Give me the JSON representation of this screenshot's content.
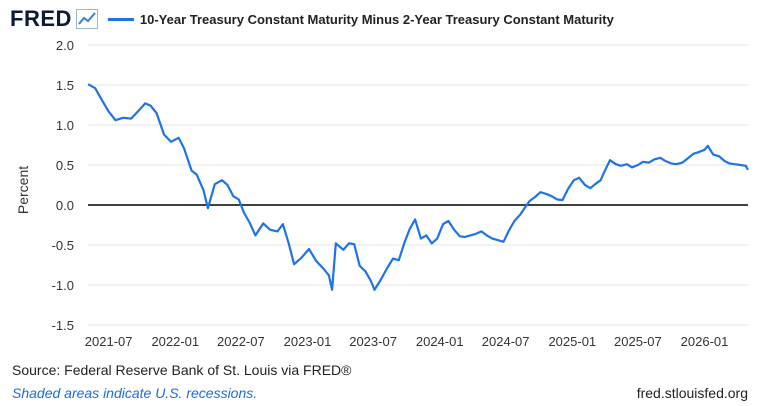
{
  "brand": {
    "logo_text": "FRED",
    "icon": "line-chart-icon"
  },
  "colors": {
    "series": "#1e73e6",
    "grid": "#e3e3e3",
    "zero_line": "#000000",
    "axis_text": "#333333"
  },
  "chart_data": {
    "type": "line",
    "title": "",
    "ylabel": "Percent",
    "xlabel": "",
    "ylim": [
      -1.5,
      2.0
    ],
    "yticks": [
      2.0,
      1.5,
      1.0,
      0.5,
      0.0,
      -0.5,
      -1.0,
      -1.5
    ],
    "ytick_labels": [
      "2.0",
      "1.5",
      "1.0",
      "0.5",
      "0.0",
      "-0.5",
      "-1.0",
      "-1.5"
    ],
    "xlim": [
      "2021-05-05",
      "2026-05-01"
    ],
    "xticks": [
      "2021-07-01",
      "2022-01-01",
      "2022-07-01",
      "2023-01-01",
      "2023-07-01",
      "2024-01-01",
      "2024-07-01",
      "2025-01-01",
      "2025-07-01",
      "2026-01-01"
    ],
    "xtick_labels": [
      "2021-07",
      "2022-01",
      "2022-07",
      "2023-01",
      "2023-07",
      "2024-01",
      "2024-07",
      "2025-01",
      "2025-07",
      "2026-01"
    ],
    "grid": "horizontal",
    "reference_line": 0,
    "legend_position": "top",
    "series": [
      {
        "name": "10-Year Treasury Constant Maturity Minus 2-Year Treasury Constant Maturity",
        "points": [
          [
            "2021-05-05",
            1.51
          ],
          [
            "2021-05-25",
            1.46
          ],
          [
            "2021-06-15",
            1.29
          ],
          [
            "2021-07-01",
            1.17
          ],
          [
            "2021-07-20",
            1.06
          ],
          [
            "2021-08-10",
            1.09
          ],
          [
            "2021-09-01",
            1.08
          ],
          [
            "2021-09-20",
            1.17
          ],
          [
            "2021-10-10",
            1.27
          ],
          [
            "2021-10-25",
            1.24
          ],
          [
            "2021-11-10",
            1.15
          ],
          [
            "2021-12-01",
            0.88
          ],
          [
            "2021-12-20",
            0.79
          ],
          [
            "2022-01-10",
            0.84
          ],
          [
            "2022-01-25",
            0.71
          ],
          [
            "2022-02-15",
            0.43
          ],
          [
            "2022-03-01",
            0.38
          ],
          [
            "2022-03-20",
            0.18
          ],
          [
            "2022-04-01",
            -0.04
          ],
          [
            "2022-04-20",
            0.26
          ],
          [
            "2022-05-10",
            0.31
          ],
          [
            "2022-05-25",
            0.25
          ],
          [
            "2022-06-10",
            0.11
          ],
          [
            "2022-06-25",
            0.07
          ],
          [
            "2022-07-10",
            -0.1
          ],
          [
            "2022-07-25",
            -0.22
          ],
          [
            "2022-08-10",
            -0.38
          ],
          [
            "2022-09-01",
            -0.23
          ],
          [
            "2022-09-20",
            -0.31
          ],
          [
            "2022-10-10",
            -0.33
          ],
          [
            "2022-10-25",
            -0.24
          ],
          [
            "2022-11-10",
            -0.48
          ],
          [
            "2022-11-25",
            -0.74
          ],
          [
            "2022-12-15",
            -0.66
          ],
          [
            "2023-01-05",
            -0.55
          ],
          [
            "2023-01-25",
            -0.7
          ],
          [
            "2023-02-15",
            -0.8
          ],
          [
            "2023-03-01",
            -0.88
          ],
          [
            "2023-03-10",
            -1.06
          ],
          [
            "2023-03-20",
            -0.48
          ],
          [
            "2023-04-10",
            -0.56
          ],
          [
            "2023-04-25",
            -0.48
          ],
          [
            "2023-05-10",
            -0.49
          ],
          [
            "2023-05-25",
            -0.76
          ],
          [
            "2023-06-10",
            -0.83
          ],
          [
            "2023-06-25",
            -0.95
          ],
          [
            "2023-07-05",
            -1.06
          ],
          [
            "2023-07-20",
            -0.95
          ],
          [
            "2023-08-10",
            -0.78
          ],
          [
            "2023-08-25",
            -0.67
          ],
          [
            "2023-09-10",
            -0.69
          ],
          [
            "2023-09-25",
            -0.48
          ],
          [
            "2023-10-10",
            -0.3
          ],
          [
            "2023-10-25",
            -0.18
          ],
          [
            "2023-11-10",
            -0.42
          ],
          [
            "2023-11-25",
            -0.38
          ],
          [
            "2023-12-10",
            -0.48
          ],
          [
            "2023-12-25",
            -0.42
          ],
          [
            "2024-01-10",
            -0.24
          ],
          [
            "2024-01-25",
            -0.2
          ],
          [
            "2024-02-10",
            -0.31
          ],
          [
            "2024-02-25",
            -0.39
          ],
          [
            "2024-03-10",
            -0.4
          ],
          [
            "2024-03-25",
            -0.38
          ],
          [
            "2024-04-10",
            -0.36
          ],
          [
            "2024-04-25",
            -0.33
          ],
          [
            "2024-05-10",
            -0.38
          ],
          [
            "2024-05-25",
            -0.42
          ],
          [
            "2024-06-10",
            -0.44
          ],
          [
            "2024-06-25",
            -0.46
          ],
          [
            "2024-07-10",
            -0.32
          ],
          [
            "2024-07-25",
            -0.2
          ],
          [
            "2024-08-10",
            -0.12
          ],
          [
            "2024-08-25",
            -0.02
          ],
          [
            "2024-09-05",
            0.05
          ],
          [
            "2024-09-20",
            0.1
          ],
          [
            "2024-10-05",
            0.16
          ],
          [
            "2024-10-20",
            0.14
          ],
          [
            "2024-11-05",
            0.11
          ],
          [
            "2024-11-20",
            0.07
          ],
          [
            "2024-12-05",
            0.06
          ],
          [
            "2024-12-20",
            0.2
          ],
          [
            "2025-01-05",
            0.31
          ],
          [
            "2025-01-20",
            0.34
          ],
          [
            "2025-02-05",
            0.25
          ],
          [
            "2025-02-20",
            0.21
          ],
          [
            "2025-03-05",
            0.26
          ],
          [
            "2025-03-20",
            0.31
          ],
          [
            "2025-04-01",
            0.43
          ],
          [
            "2025-04-15",
            0.56
          ],
          [
            "2025-05-01",
            0.51
          ],
          [
            "2025-05-15",
            0.49
          ],
          [
            "2025-06-01",
            0.51
          ],
          [
            "2025-06-15",
            0.47
          ],
          [
            "2025-07-01",
            0.5
          ],
          [
            "2025-07-15",
            0.54
          ],
          [
            "2025-08-01",
            0.53
          ],
          [
            "2025-08-15",
            0.57
          ],
          [
            "2025-09-01",
            0.59
          ],
          [
            "2025-09-15",
            0.55
          ],
          [
            "2025-10-01",
            0.52
          ],
          [
            "2025-10-15",
            0.51
          ],
          [
            "2025-11-01",
            0.53
          ],
          [
            "2025-11-15",
            0.58
          ],
          [
            "2025-12-01",
            0.64
          ],
          [
            "2025-12-15",
            0.66
          ],
          [
            "2026-01-01",
            0.69
          ],
          [
            "2026-01-10",
            0.74
          ],
          [
            "2026-01-25",
            0.63
          ],
          [
            "2026-02-10",
            0.61
          ],
          [
            "2026-02-25",
            0.55
          ],
          [
            "2026-03-10",
            0.52
          ],
          [
            "2026-03-25",
            0.51
          ],
          [
            "2026-04-10",
            0.5
          ],
          [
            "2026-04-25",
            0.49
          ],
          [
            "2026-05-01",
            0.44
          ]
        ]
      }
    ]
  },
  "footer": {
    "source": "Source: Federal Reserve Bank of St. Louis via FRED®",
    "note": "Shaded areas indicate U.S. recessions.",
    "url": "fred.stlouisfed.org"
  }
}
